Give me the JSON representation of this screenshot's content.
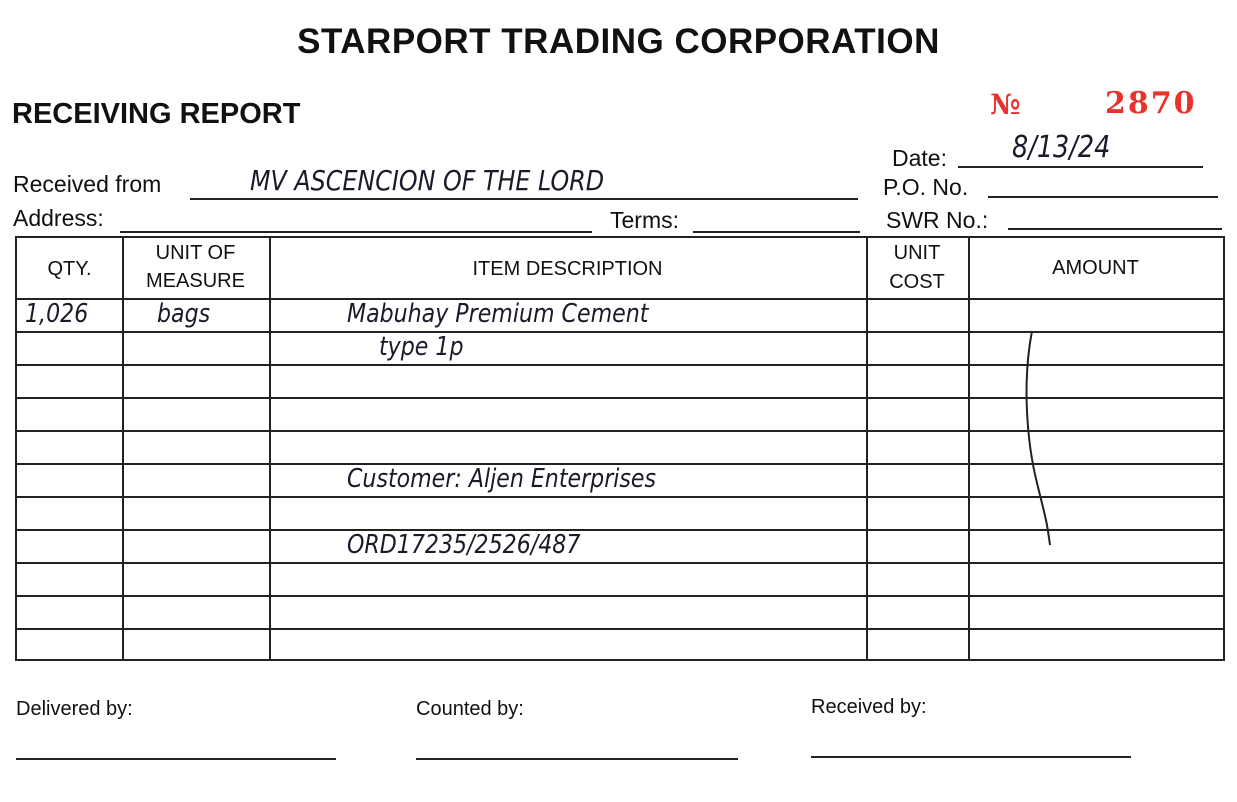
{
  "header": {
    "company": "STARPORT TRADING CORPORATION",
    "report_title": "RECEIVING REPORT",
    "number_prefix": "№",
    "number": "2870"
  },
  "fields": {
    "received_from_label": "Received from",
    "received_from_value": "MV ASCENCION OF THE LORD",
    "address_label": "Address:",
    "address_value": "",
    "terms_label": "Terms:",
    "terms_value": "",
    "date_label": "Date:",
    "date_value": "8/13/24",
    "po_label": "P.O. No.",
    "po_value": "",
    "swr_label": "SWR No.:",
    "swr_value": ""
  },
  "table": {
    "headers": {
      "qty": "QTY.",
      "unit_line1": "UNIT OF",
      "unit_line2": "MEASURE",
      "description": "ITEM DESCRIPTION",
      "cost_line1": "UNIT",
      "cost_line2": "COST",
      "amount": "AMOUNT"
    },
    "rows": [
      {
        "qty": "1,026",
        "unit": "bags",
        "description": "Mabuhay Premium Cement"
      },
      {
        "qty": "",
        "unit": "",
        "description": "type 1p"
      },
      {
        "qty": "",
        "unit": "",
        "description": ""
      },
      {
        "qty": "",
        "unit": "",
        "description": ""
      },
      {
        "qty": "",
        "unit": "",
        "description": ""
      },
      {
        "qty": "",
        "unit": "",
        "description": "Customer: Aljen Enterprises"
      },
      {
        "qty": "",
        "unit": "",
        "description": ""
      },
      {
        "qty": "",
        "unit": "",
        "description": "ORD17235/2526/487"
      },
      {
        "qty": "",
        "unit": "",
        "description": ""
      },
      {
        "qty": "",
        "unit": "",
        "description": ""
      },
      {
        "qty": "",
        "unit": "",
        "description": ""
      }
    ]
  },
  "signatures": {
    "delivered_by": "Delivered by:",
    "counted_by": "Counted by:",
    "received_by": "Received by:"
  },
  "colors": {
    "stamp": "#e8322c",
    "ink": "#111111"
  }
}
